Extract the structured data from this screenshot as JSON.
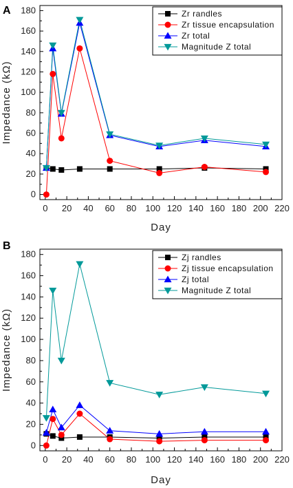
{
  "chart_data": [
    {
      "panel": "A",
      "type": "line",
      "xlabel": "Day",
      "ylabel": "Impedance (kΩ)",
      "xlim": [
        -5,
        220
      ],
      "ylim": [
        -5,
        185
      ],
      "xticks": [
        0,
        20,
        40,
        60,
        80,
        100,
        120,
        140,
        160,
        180,
        200,
        220
      ],
      "yticks": [
        0,
        20,
        40,
        60,
        80,
        100,
        120,
        140,
        160,
        180
      ],
      "legend_position": "top-right",
      "series": [
        {
          "name": "Zr randles",
          "color": "#000000",
          "marker": "square",
          "x": [
            1,
            7,
            15,
            32,
            60,
            106,
            148,
            205
          ],
          "y": [
            26,
            25,
            24,
            25,
            25,
            25,
            26,
            25
          ]
        },
        {
          "name": "Zr tissue encapsulation",
          "color": "#ff0000",
          "marker": "circle",
          "x": [
            1,
            7,
            15,
            32,
            60,
            106,
            148,
            205
          ],
          "y": [
            0,
            118,
            55,
            143,
            33,
            21,
            27,
            22
          ]
        },
        {
          "name": "Zr total",
          "color": "#0000ff",
          "marker": "triangle-up",
          "x": [
            1,
            7,
            15,
            32,
            60,
            106,
            148,
            205
          ],
          "y": [
            26,
            143,
            79,
            168,
            58,
            47,
            53,
            47
          ]
        },
        {
          "name": "Magnitude Z total",
          "color": "#009999",
          "marker": "triangle-down",
          "x": [
            1,
            7,
            15,
            32,
            60,
            106,
            148,
            205
          ],
          "y": [
            26,
            146,
            80,
            171,
            59,
            48,
            55,
            49
          ]
        }
      ]
    },
    {
      "panel": "B",
      "type": "line",
      "xlabel": "Day",
      "ylabel": "Impedance (kΩ)",
      "xlim": [
        -5,
        220
      ],
      "ylim": [
        -5,
        185
      ],
      "xticks": [
        0,
        20,
        40,
        60,
        80,
        100,
        120,
        140,
        160,
        180,
        200,
        220
      ],
      "yticks": [
        0,
        20,
        40,
        60,
        80,
        100,
        120,
        140,
        160,
        180
      ],
      "legend_position": "top-right",
      "series": [
        {
          "name": "Zj randles",
          "color": "#000000",
          "marker": "square",
          "x": [
            1,
            7,
            15,
            32,
            60,
            106,
            148,
            205
          ],
          "y": [
            11,
            9,
            7,
            8,
            8,
            7,
            8,
            8
          ]
        },
        {
          "name": "Zj tissue encapsulation",
          "color": "#ff0000",
          "marker": "circle",
          "x": [
            1,
            7,
            15,
            32,
            60,
            106,
            148,
            205
          ],
          "y": [
            0,
            25,
            10,
            30,
            6,
            4,
            5,
            5
          ]
        },
        {
          "name": "Zj total",
          "color": "#0000ff",
          "marker": "triangle-up",
          "x": [
            1,
            7,
            15,
            32,
            60,
            106,
            148,
            205
          ],
          "y": [
            12,
            34,
            17,
            38,
            14,
            11,
            13,
            13
          ]
        },
        {
          "name": "Magnitude Z total",
          "color": "#009999",
          "marker": "triangle-down",
          "x": [
            1,
            7,
            15,
            32,
            60,
            106,
            148,
            205
          ],
          "y": [
            26,
            146,
            80,
            171,
            59,
            48,
            55,
            49
          ]
        }
      ]
    }
  ]
}
